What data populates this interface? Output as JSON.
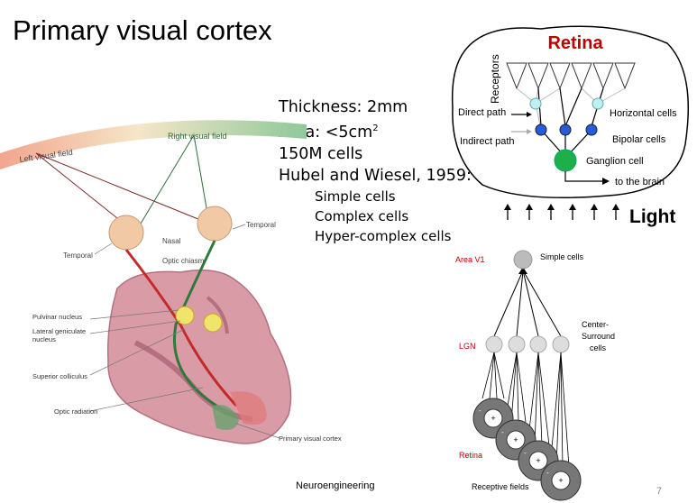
{
  "title": "Primary visual cortex",
  "facts": {
    "thickness": "Thickness: 2mm",
    "area_prefix": "Area: <5cm",
    "area_sup": "2",
    "cells": "150M cells",
    "hubel": "Hubel and Wiesel, 1959:",
    "types": [
      "Simple cells",
      "Complex cells",
      "Hyper-complex cells"
    ]
  },
  "brain": {
    "left_field": "Left visual field",
    "right_field": "Right visual field",
    "nasal": "Nasal",
    "temporal_right": "Temporal",
    "temporal_left": "Temporal",
    "optic_chiasm": "Optic chiasm",
    "pulvinar": "Pulvinar nucleus",
    "lgn_line1": "Lateral geniculate",
    "lgn_line2": "nucleus",
    "superior_colliculus": "Superior colliculus",
    "optic_radiation": "Optic radiation",
    "primary_visual_cortex": "Primary visual cortex"
  },
  "retina": {
    "title": "Retina",
    "receptors": "Receptors",
    "direct_path": "Direct path",
    "indirect_path": "Indirect path",
    "horizontal_cells": "Horizontal cells",
    "bipolar_cells": "Bipolar cells",
    "ganglion_cell": "Ganglion cell",
    "to_brain": "to the brain",
    "light": "Light",
    "colors": {
      "title": "#c00000",
      "ganglion": "#1db04a",
      "bipolar": "#2a5bd7",
      "horizontal": "#bfeff2"
    }
  },
  "hierarchy": {
    "area_v1": "Area V1",
    "simple_cells": "Simple cells",
    "center": "Center-",
    "surround": "Surround",
    "cells": "cells",
    "lgn": "LGN",
    "retina": "Retina",
    "receptive_fields": "Receptive fields",
    "plus": "+",
    "minus": "-",
    "label_color": "#c00000"
  },
  "footer": "Neuroengineering",
  "page_number": "7"
}
